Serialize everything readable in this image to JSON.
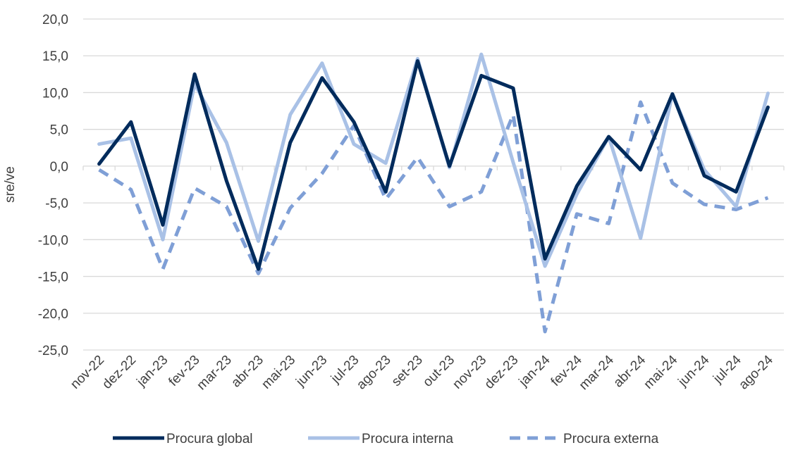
{
  "chart_data": {
    "type": "line",
    "title": "",
    "xlabel": "",
    "ylabel": "sre/ve",
    "ylim": [
      -25,
      20
    ],
    "yticks": [
      20,
      15,
      10,
      5,
      0,
      -5,
      -10,
      -15,
      -20,
      -25
    ],
    "ytick_labels": [
      "20,0",
      "15,0",
      "10,0",
      "5,0",
      "0,0",
      "-5,0",
      "-10,0",
      "-15,0",
      "-20,0",
      "-25,0"
    ],
    "grid": true,
    "legend_position": "bottom",
    "categories": [
      "nov-22",
      "dez-22",
      "jan-23",
      "fev-23",
      "mar-23",
      "abr-23",
      "mai-23",
      "jun-23",
      "jul-23",
      "ago-23",
      "set-23",
      "out-23",
      "nov-23",
      "dez-23",
      "jan-24",
      "fev-24",
      "mar-24",
      "abr-24",
      "mai-24",
      "jun-24",
      "jul-24",
      "ago-24"
    ],
    "series": [
      {
        "name": "Procura global",
        "color": "#002b5c",
        "style": "solid",
        "values": [
          0.3,
          6.0,
          -8.0,
          12.5,
          -2.0,
          -14.0,
          3.2,
          12.0,
          6.0,
          -3.5,
          14.3,
          0.0,
          12.3,
          10.6,
          -12.6,
          -2.7,
          4.0,
          -0.5,
          9.8,
          -1.3,
          -3.5,
          8.0
        ]
      },
      {
        "name": "Procura interna",
        "color": "#a9c1e6",
        "style": "solid",
        "values": [
          3.0,
          3.8,
          -10.0,
          11.2,
          3.2,
          -10.2,
          7.0,
          14.0,
          3.0,
          0.4,
          14.6,
          -0.2,
          15.2,
          0.5,
          -13.6,
          -3.8,
          4.0,
          -9.8,
          9.8,
          -0.5,
          -5.5,
          9.9
        ]
      },
      {
        "name": "Procura externa",
        "color": "#7f9fd6",
        "style": "dashed",
        "values": [
          -0.5,
          -3.2,
          -14.0,
          -3.0,
          -5.5,
          -14.6,
          -5.7,
          -1.0,
          5.5,
          -4.5,
          1.2,
          -5.5,
          -3.5,
          7.0,
          -22.5,
          -6.5,
          -7.8,
          8.7,
          -2.3,
          -5.2,
          -5.9,
          -4.3
        ]
      }
    ]
  }
}
